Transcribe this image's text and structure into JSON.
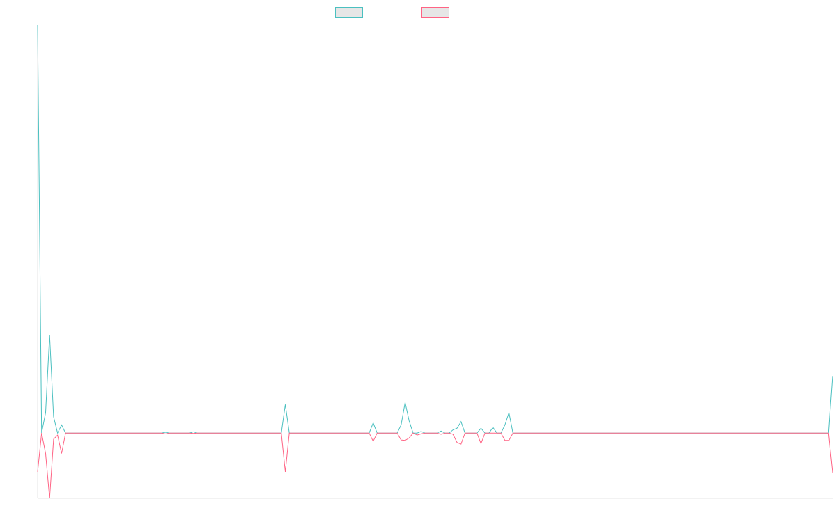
{
  "chart_data": {
    "type": "line",
    "title": "",
    "xlabel": "",
    "ylabel": "",
    "grid": false,
    "legend_position": "top-center",
    "y_axis_visible": false,
    "x_axis_labels_visible": false,
    "ylim": [
      -16,
      100
    ],
    "x_count": 200,
    "series": [
      {
        "name": "",
        "color": "#4bc0c0",
        "fill_color": "#e6e6e6",
        "peaks": [
          [
            0,
            100
          ],
          [
            1,
            0
          ],
          [
            2,
            5
          ],
          [
            3,
            24
          ],
          [
            4,
            4
          ],
          [
            5,
            0
          ],
          [
            6,
            2
          ],
          [
            7,
            0
          ],
          [
            31,
            0
          ],
          [
            32,
            0.2
          ],
          [
            33,
            0
          ],
          [
            38,
            0
          ],
          [
            39,
            0.3
          ],
          [
            40,
            0
          ],
          [
            61,
            0
          ],
          [
            62,
            7
          ],
          [
            63,
            0
          ],
          [
            83,
            0
          ],
          [
            84,
            2.5
          ],
          [
            85,
            0
          ],
          [
            90,
            0
          ],
          [
            91,
            2
          ],
          [
            92,
            7.5
          ],
          [
            93,
            3
          ],
          [
            94,
            0
          ],
          [
            95,
            0
          ],
          [
            96,
            0.4
          ],
          [
            97,
            0
          ],
          [
            100,
            0
          ],
          [
            101,
            0.5
          ],
          [
            102,
            0
          ],
          [
            103,
            0
          ],
          [
            104,
            0.8
          ],
          [
            105,
            1.2
          ],
          [
            106,
            2.8
          ],
          [
            107,
            0
          ],
          [
            110,
            0
          ],
          [
            111,
            1.2
          ],
          [
            112,
            0
          ],
          [
            113,
            0
          ],
          [
            114,
            1.4
          ],
          [
            115,
            0
          ],
          [
            116,
            0
          ],
          [
            117,
            2
          ],
          [
            118,
            5
          ],
          [
            119,
            0
          ],
          [
            198,
            0
          ],
          [
            199,
            14
          ]
        ]
      },
      {
        "name": "",
        "color": "#ff6384",
        "fill_color": "#e6e6e6",
        "peaks": [
          [
            0,
            -9.5
          ],
          [
            1,
            0
          ],
          [
            2,
            -5
          ],
          [
            3,
            -16
          ],
          [
            4,
            -1.5
          ],
          [
            5,
            -0.5
          ],
          [
            6,
            -5
          ],
          [
            7,
            0
          ],
          [
            31,
            0
          ],
          [
            32,
            -0.2
          ],
          [
            33,
            0
          ],
          [
            38,
            0
          ],
          [
            39,
            -0.1
          ],
          [
            40,
            0
          ],
          [
            61,
            0
          ],
          [
            62,
            -9.5
          ],
          [
            63,
            0
          ],
          [
            83,
            0
          ],
          [
            84,
            -2
          ],
          [
            85,
            0
          ],
          [
            90,
            0
          ],
          [
            91,
            -1.7
          ],
          [
            92,
            -1.8
          ],
          [
            93,
            -1.2
          ],
          [
            94,
            0
          ],
          [
            95,
            -0.5
          ],
          [
            96,
            -0.2
          ],
          [
            97,
            0
          ],
          [
            100,
            0
          ],
          [
            101,
            -0.3
          ],
          [
            102,
            0
          ],
          [
            103,
            0
          ],
          [
            104,
            -0.3
          ],
          [
            105,
            -2.3
          ],
          [
            106,
            -2.7
          ],
          [
            107,
            0
          ],
          [
            110,
            0
          ],
          [
            111,
            -2.6
          ],
          [
            112,
            0
          ],
          [
            113,
            0
          ],
          [
            114,
            0
          ],
          [
            115,
            0
          ],
          [
            116,
            0
          ],
          [
            117,
            -1.8
          ],
          [
            118,
            -1.8
          ],
          [
            119,
            0
          ],
          [
            198,
            0
          ],
          [
            199,
            -9.7
          ]
        ]
      }
    ]
  }
}
